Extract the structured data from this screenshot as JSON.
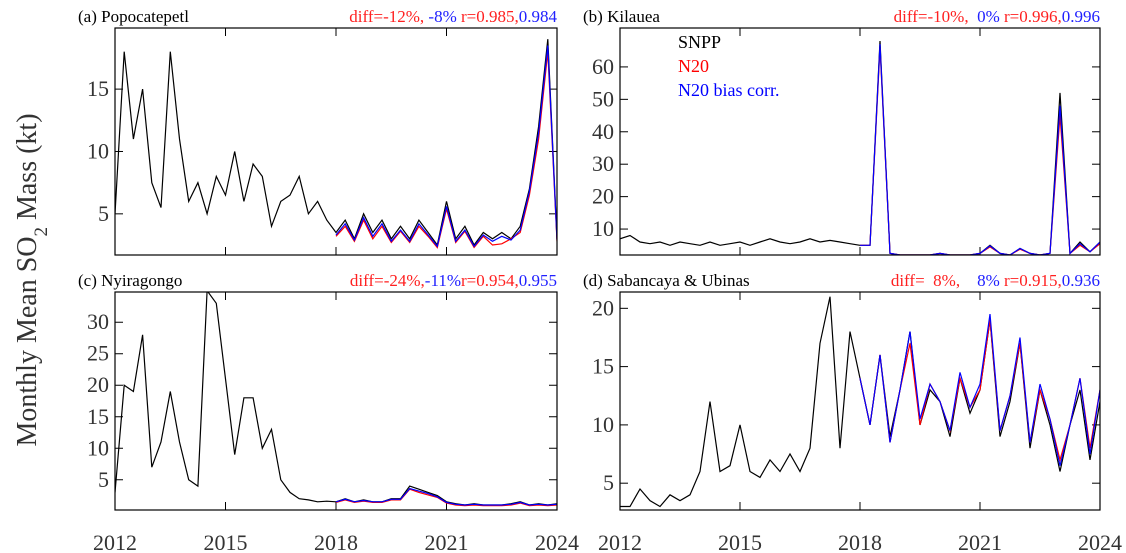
{
  "ylabel_parts": [
    "Monthly Mean SO",
    "2",
    " Mass (kt)"
  ],
  "chart_data": [
    {
      "type": "line",
      "title": "(a) Popocatepetl",
      "stats": [
        {
          "text": "diff=-12%,",
          "color": "#ff2020"
        },
        {
          "text": " -8%",
          "color": "#2020ff"
        },
        {
          "text": " r=0.985,",
          "color": "#ff2020"
        },
        {
          "text": "0.984",
          "color": "#2020ff"
        }
      ],
      "x": [
        2012,
        2012.25,
        2012.5,
        2012.75,
        2013,
        2013.25,
        2013.5,
        2013.75,
        2014,
        2014.25,
        2014.5,
        2014.75,
        2015,
        2015.25,
        2015.5,
        2015.75,
        2016,
        2016.25,
        2016.5,
        2016.75,
        2017,
        2017.25,
        2017.5,
        2017.75,
        2018,
        2018.25,
        2018.5,
        2018.75,
        2019,
        2019.25,
        2019.5,
        2019.75,
        2020,
        2020.25,
        2020.5,
        2020.75,
        2021,
        2021.25,
        2021.5,
        2021.75,
        2022,
        2022.25,
        2022.5,
        2022.75,
        2023,
        2023.25,
        2023.5,
        2023.75,
        2024
      ],
      "xlim": [
        2012,
        2024
      ],
      "xticks": [
        2012,
        2015,
        2018,
        2021,
        2024
      ],
      "ylim": [
        1.7,
        19.9
      ],
      "yticks": [
        5,
        10,
        15
      ],
      "legend": false,
      "series": [
        {
          "color": "#000000",
          "values": [
            5,
            18,
            11,
            15,
            7.5,
            5.5,
            18,
            11,
            6,
            7.5,
            5,
            8,
            6.5,
            10,
            6,
            9,
            8,
            4,
            6,
            6.5,
            8,
            5,
            6,
            4.5,
            3.5,
            4.5,
            3,
            5,
            3.5,
            4.5,
            3,
            4,
            3,
            4.5,
            3.5,
            2.5,
            6,
            3,
            4,
            2.5,
            3.5,
            3,
            3.5,
            3,
            4,
            7,
            12,
            19,
            3
          ]
        },
        {
          "color": "#ff0000",
          "values": [
            null,
            null,
            null,
            null,
            null,
            null,
            null,
            null,
            null,
            null,
            null,
            null,
            null,
            null,
            null,
            null,
            null,
            null,
            null,
            null,
            null,
            null,
            null,
            null,
            3.2,
            4,
            2.8,
            4.5,
            3,
            4,
            2.7,
            3.6,
            2.7,
            4,
            3.2,
            2.3,
            5.4,
            2.7,
            3.6,
            2.3,
            3.2,
            2.5,
            2.6,
            3,
            3.5,
            6.5,
            11,
            18,
            2.8
          ]
        },
        {
          "color": "#0000ff",
          "values": [
            null,
            null,
            null,
            null,
            null,
            null,
            null,
            null,
            null,
            null,
            null,
            null,
            null,
            null,
            null,
            null,
            null,
            null,
            null,
            null,
            null,
            null,
            null,
            null,
            3.3,
            4.2,
            2.9,
            4.7,
            3.2,
            4.2,
            2.8,
            3.7,
            2.8,
            4.2,
            3.3,
            2.4,
            5.6,
            2.8,
            3.7,
            2.4,
            3.3,
            2.8,
            3.2,
            2.9,
            3.7,
            6.8,
            11.5,
            18.5,
            2.9
          ]
        }
      ]
    },
    {
      "type": "line",
      "title": "(b) Kilauea",
      "stats": [
        {
          "text": "diff=-10%,",
          "color": "#ff2020"
        },
        {
          "text": "  0%",
          "color": "#2020ff"
        },
        {
          "text": " r=0.996,",
          "color": "#ff2020"
        },
        {
          "text": "0.996",
          "color": "#2020ff"
        }
      ],
      "x": [
        2012,
        2012.25,
        2012.5,
        2012.75,
        2013,
        2013.25,
        2013.5,
        2013.75,
        2014,
        2014.25,
        2014.5,
        2014.75,
        2015,
        2015.25,
        2015.5,
        2015.75,
        2016,
        2016.25,
        2016.5,
        2016.75,
        2017,
        2017.25,
        2017.5,
        2017.75,
        2018,
        2018.25,
        2018.5,
        2018.75,
        2019,
        2019.25,
        2019.5,
        2019.75,
        2020,
        2020.25,
        2020.5,
        2020.75,
        2021,
        2021.25,
        2021.5,
        2021.75,
        2022,
        2022.25,
        2022.5,
        2022.75,
        2023,
        2023.25,
        2023.5,
        2023.75,
        2024
      ],
      "xlim": [
        2012,
        2024
      ],
      "xticks": [
        2012,
        2015,
        2018,
        2021,
        2024
      ],
      "ylim": [
        2,
        72
      ],
      "yticks": [
        10,
        20,
        30,
        40,
        50,
        60
      ],
      "legend": true,
      "series": [
        {
          "name": "SNPP",
          "color": "#000000",
          "values": [
            7,
            8,
            6,
            5.5,
            6,
            5,
            6,
            5.5,
            5,
            6,
            5,
            5.5,
            6,
            5,
            6,
            7,
            6,
            5.5,
            6,
            7,
            6,
            6.5,
            6,
            5.5,
            5,
            5,
            68,
            2.5,
            2,
            2,
            2,
            2,
            2.5,
            2,
            2,
            2,
            2.5,
            5,
            2.5,
            2,
            4,
            2.5,
            2,
            2.5,
            52,
            2.5,
            6,
            3,
            6
          ]
        },
        {
          "name": "N20",
          "color": "#ff0000",
          "values": [
            null,
            null,
            null,
            null,
            null,
            null,
            null,
            null,
            null,
            null,
            null,
            null,
            null,
            null,
            null,
            null,
            null,
            null,
            null,
            null,
            null,
            null,
            null,
            null,
            5,
            5,
            66,
            2.5,
            2,
            2,
            2,
            2,
            2.5,
            2,
            2,
            2,
            2.5,
            4.5,
            2.5,
            2,
            3.8,
            2.5,
            2,
            2.5,
            45,
            2.5,
            5,
            3,
            5.5
          ]
        },
        {
          "name": "N20 bias corr.",
          "color": "#0000ff",
          "values": [
            null,
            null,
            null,
            null,
            null,
            null,
            null,
            null,
            null,
            null,
            null,
            null,
            null,
            null,
            null,
            null,
            null,
            null,
            null,
            null,
            null,
            null,
            null,
            null,
            5,
            5,
            67,
            2.5,
            2,
            2,
            2,
            2,
            2.5,
            2,
            2,
            2,
            2.5,
            4.8,
            2.5,
            2,
            4,
            2.5,
            2,
            2.5,
            48,
            2.5,
            5.5,
            3,
            6
          ]
        }
      ]
    },
    {
      "type": "line",
      "title": "(c) Nyiragongo",
      "stats": [
        {
          "text": "diff=-24%,",
          "color": "#ff2020"
        },
        {
          "text": "-11%",
          "color": "#2020ff"
        },
        {
          "text": "r=0.954,",
          "color": "#ff2020"
        },
        {
          "text": "0.955",
          "color": "#2020ff"
        }
      ],
      "x": [
        2012,
        2012.25,
        2012.5,
        2012.75,
        2013,
        2013.25,
        2013.5,
        2013.75,
        2014,
        2014.25,
        2014.5,
        2014.75,
        2015,
        2015.25,
        2015.5,
        2015.75,
        2016,
        2016.25,
        2016.5,
        2016.75,
        2017,
        2017.25,
        2017.5,
        2017.75,
        2018,
        2018.25,
        2018.5,
        2018.75,
        2019,
        2019.25,
        2019.5,
        2019.75,
        2020,
        2020.25,
        2020.5,
        2020.75,
        2021,
        2021.25,
        2021.5,
        2021.75,
        2022,
        2022.25,
        2022.5,
        2022.75,
        2023,
        2023.25,
        2023.5,
        2023.75,
        2024
      ],
      "xlim": [
        2012,
        2024
      ],
      "xticks": [
        2012,
        2015,
        2018,
        2021,
        2024
      ],
      "ylim": [
        0.2,
        34.8
      ],
      "yticks": [
        5,
        10,
        15,
        20,
        25,
        30
      ],
      "legend": false,
      "series": [
        {
          "color": "#000000",
          "values": [
            3,
            20,
            19,
            28,
            7,
            11,
            19,
            11,
            5,
            4,
            35,
            33,
            21,
            9,
            18,
            18,
            10,
            13,
            5,
            3,
            2,
            1.8,
            1.5,
            1.6,
            1.5,
            2,
            1.5,
            1.8,
            1.5,
            1.5,
            2,
            2,
            4,
            3.5,
            3,
            2.5,
            1.5,
            1.2,
            1,
            1.2,
            1,
            1,
            1,
            1.2,
            1.5,
            1,
            1.2,
            1,
            1.2
          ]
        },
        {
          "color": "#ff0000",
          "values": [
            null,
            null,
            null,
            null,
            null,
            null,
            null,
            null,
            null,
            null,
            null,
            null,
            null,
            null,
            null,
            null,
            null,
            null,
            null,
            null,
            null,
            null,
            null,
            null,
            1.4,
            1.8,
            1.4,
            1.6,
            1.4,
            1.4,
            1.8,
            1.8,
            3.5,
            3,
            2.6,
            2.2,
            1.3,
            1,
            0.9,
            1,
            0.9,
            0.9,
            0.9,
            1,
            1.3,
            0.9,
            1,
            0.9,
            1
          ]
        },
        {
          "color": "#0000ff",
          "values": [
            null,
            null,
            null,
            null,
            null,
            null,
            null,
            null,
            null,
            null,
            null,
            null,
            null,
            null,
            null,
            null,
            null,
            null,
            null,
            null,
            null,
            null,
            null,
            null,
            1.5,
            1.9,
            1.5,
            1.7,
            1.5,
            1.5,
            1.9,
            1.9,
            3.6,
            3.2,
            2.8,
            2.3,
            1.4,
            1.1,
            1,
            1.1,
            1,
            1,
            1,
            1.1,
            1.4,
            1,
            1.1,
            1,
            1.1
          ]
        }
      ]
    },
    {
      "type": "line",
      "title": "(d) Sabancaya & Ubinas",
      "stats": [
        {
          "text": "diff=  8%,",
          "color": "#ff2020"
        },
        {
          "text": "    8%",
          "color": "#2020ff"
        },
        {
          "text": " r=0.915,",
          "color": "#ff2020"
        },
        {
          "text": "0.936",
          "color": "#2020ff"
        }
      ],
      "x": [
        2012,
        2012.25,
        2012.5,
        2012.75,
        2013,
        2013.25,
        2013.5,
        2013.75,
        2014,
        2014.25,
        2014.5,
        2014.75,
        2015,
        2015.25,
        2015.5,
        2015.75,
        2016,
        2016.25,
        2016.5,
        2016.75,
        2017,
        2017.25,
        2017.5,
        2017.75,
        2018,
        2018.25,
        2018.5,
        2018.75,
        2019,
        2019.25,
        2019.5,
        2019.75,
        2020,
        2020.25,
        2020.5,
        2020.75,
        2021,
        2021.25,
        2021.5,
        2021.75,
        2022,
        2022.25,
        2022.5,
        2022.75,
        2023,
        2023.25,
        2023.5,
        2023.75,
        2024
      ],
      "xlim": [
        2012,
        2024
      ],
      "xticks": [
        2012,
        2015,
        2018,
        2021,
        2024
      ],
      "ylim": [
        2.7,
        21.4
      ],
      "yticks": [
        5,
        10,
        15,
        20
      ],
      "legend": false,
      "series": [
        {
          "color": "#000000",
          "values": [
            3,
            3,
            4.5,
            3.5,
            3,
            4,
            3.5,
            4,
            6,
            12,
            6,
            6.5,
            10,
            6,
            5.5,
            7,
            6,
            7.5,
            6,
            8,
            17,
            21,
            8,
            18,
            14,
            10,
            16,
            9,
            13,
            18,
            10,
            13,
            12,
            9,
            14,
            11,
            13,
            19,
            9,
            12,
            17,
            8,
            13,
            10,
            6,
            10,
            13,
            7,
            12
          ]
        },
        {
          "color": "#ff0000",
          "values": [
            null,
            null,
            null,
            null,
            null,
            null,
            null,
            null,
            null,
            null,
            null,
            null,
            null,
            null,
            null,
            null,
            null,
            null,
            null,
            null,
            null,
            null,
            null,
            null,
            14,
            10,
            16,
            8.5,
            13,
            17,
            10,
            13.5,
            12,
            9.5,
            14,
            11.5,
            13,
            19,
            9.5,
            12.5,
            17,
            8.5,
            13,
            10.5,
            7,
            10,
            14,
            8,
            13
          ]
        },
        {
          "color": "#0000ff",
          "values": [
            null,
            null,
            null,
            null,
            null,
            null,
            null,
            null,
            null,
            null,
            null,
            null,
            null,
            null,
            null,
            null,
            null,
            null,
            null,
            null,
            null,
            null,
            null,
            null,
            14,
            10,
            16,
            8.5,
            13,
            18,
            10.5,
            13.5,
            12,
            9.5,
            14.5,
            11.5,
            13.5,
            19.5,
            9.5,
            12.5,
            17.5,
            8.5,
            13.5,
            10.5,
            6.5,
            10,
            14,
            7.5,
            13
          ]
        }
      ]
    }
  ]
}
